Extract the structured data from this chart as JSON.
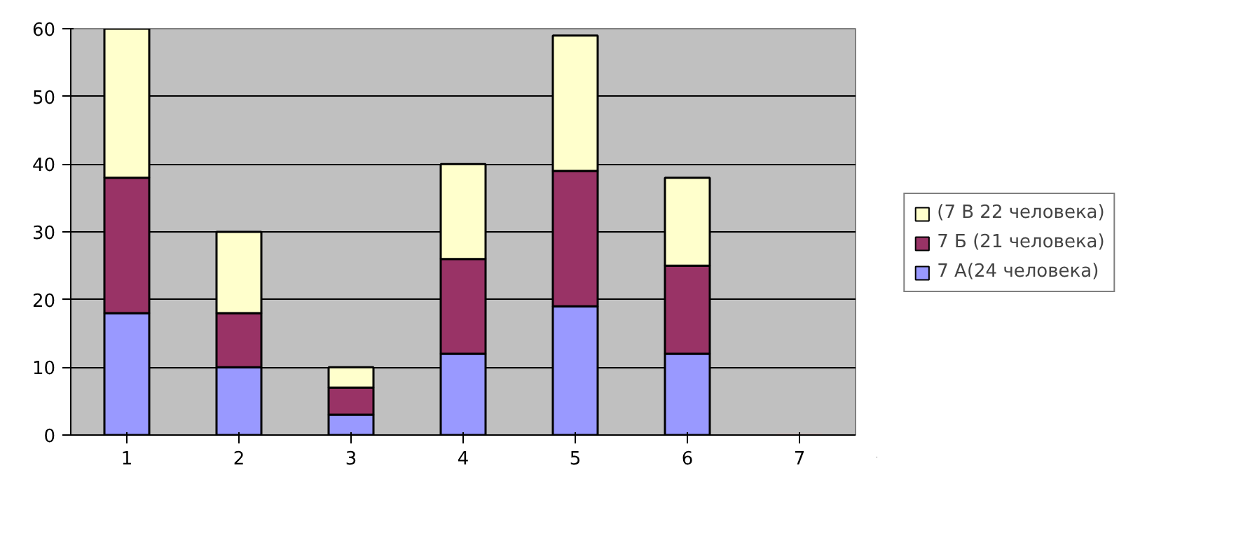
{
  "chart_data": {
    "type": "bar",
    "stacked": true,
    "categories": [
      "1",
      "2",
      "3",
      "4",
      "5",
      "6",
      "7"
    ],
    "series": [
      {
        "name": "7 А(24 человека)",
        "color": "#9999ff",
        "values": [
          18,
          10,
          3,
          12,
          19,
          12,
          0
        ]
      },
      {
        "name": "7 Б (21 человека)",
        "color": "#993366",
        "values": [
          20,
          8,
          4,
          14,
          20,
          13,
          0
        ]
      },
      {
        "name": "(7 В 22 человека)",
        "color": "#ffffcc",
        "values": [
          22,
          12,
          3,
          14,
          20,
          13,
          0
        ]
      }
    ],
    "ylim": [
      0,
      60
    ],
    "yticks": [
      0,
      10,
      20,
      30,
      40,
      50,
      60
    ],
    "grid": "y",
    "legend": "right"
  }
}
